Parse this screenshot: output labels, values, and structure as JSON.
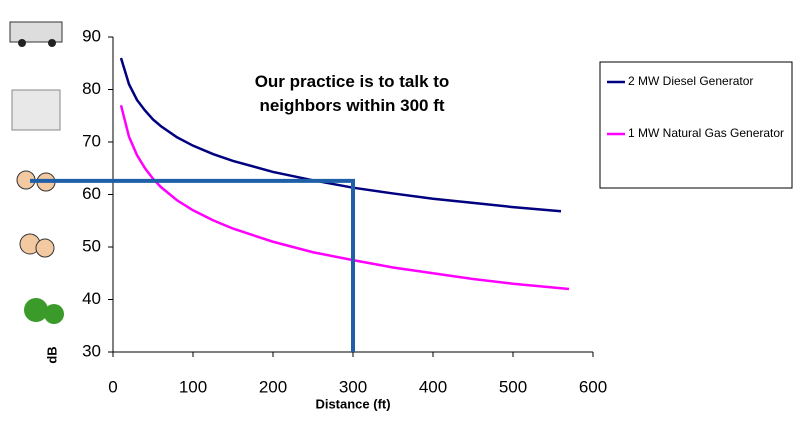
{
  "chart_data": {
    "type": "line",
    "x_label": "Distance (ft)",
    "y_label": "dB",
    "annotation": "Our practice is to talk to neighbors within 300 ft",
    "reference": {
      "x": 300,
      "y": 62.6,
      "color": "#1f5fa8"
    },
    "series": [
      {
        "name": "2 MW Diesel Generator",
        "color": "#000080",
        "x": [
          10,
          20,
          30,
          40,
          50,
          60,
          80,
          100,
          125,
          150,
          200,
          250,
          300,
          350,
          400,
          450,
          500,
          560
        ],
        "values": [
          86,
          81,
          78,
          76,
          74.3,
          73,
          70.9,
          69.3,
          67.7,
          66.4,
          64.3,
          62.7,
          61.3,
          60.2,
          59.2,
          58.4,
          57.6,
          56.8
        ]
      },
      {
        "name": "1 MW Natural Gas Generator",
        "color": "#ff00ff",
        "x": [
          10,
          20,
          30,
          40,
          50,
          60,
          80,
          100,
          125,
          150,
          200,
          250,
          300,
          350,
          400,
          450,
          500,
          570
        ],
        "values": [
          77,
          71,
          67.5,
          65,
          63,
          61.4,
          58.9,
          57,
          55.1,
          53.5,
          51,
          49,
          47.5,
          46.1,
          45,
          43.9,
          43,
          42
        ]
      }
    ],
    "xlim": [
      0,
      600
    ],
    "xticks": [
      0,
      100,
      200,
      300,
      400,
      500,
      600
    ],
    "ylim": [
      30,
      90
    ],
    "yticks": [
      30,
      40,
      50,
      60,
      70,
      80,
      90
    ],
    "grid": false,
    "legend": "right"
  }
}
